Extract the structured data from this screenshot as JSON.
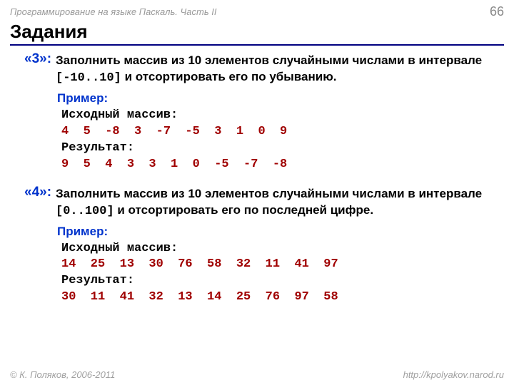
{
  "header": {
    "course": "Программирование на языке Паскаль. Часть II",
    "page": "66"
  },
  "title": "Задания",
  "tasks": [
    {
      "num": "«3»:",
      "desc_before": "Заполнить массив из 10 элементов случайными числами в интервале ",
      "range": "[-10..10]",
      "desc_after": " и отсортировать его по убыванию.",
      "example_label": "Пример:",
      "lines": [
        {
          "text": "Исходный массив:",
          "red": false
        },
        {
          "text": "4  5  -8  3  -7  -5  3  1  0  9",
          "red": true
        },
        {
          "text": "Результат:",
          "red": false
        },
        {
          "text": "9  5  4  3  3  1  0  -5  -7  -8",
          "red": true
        }
      ]
    },
    {
      "num": "«4»:",
      "desc_before": "Заполнить массив из 10 элементов случайными числами в интервале ",
      "range": "[0..100]",
      "desc_after": " и отсортировать его по последней цифре.",
      "example_label": "Пример:",
      "lines": [
        {
          "text": "Исходный массив:",
          "red": false
        },
        {
          "text": "14  25  13  30  76  58  32  11  41  97",
          "red": true
        },
        {
          "text": "Результат:",
          "red": false
        },
        {
          "text": "30  11  41  32  13  14  25  76  97  58",
          "red": true
        }
      ]
    }
  ],
  "footer": {
    "copyright": "© К. Поляков, 2006-2011",
    "url": "http://kpolyakov.narod.ru"
  },
  "colors": {
    "accent_blue": "#0033cc",
    "rule_blue": "#000080",
    "code_red": "#a00000",
    "muted": "#9a9a9a"
  }
}
